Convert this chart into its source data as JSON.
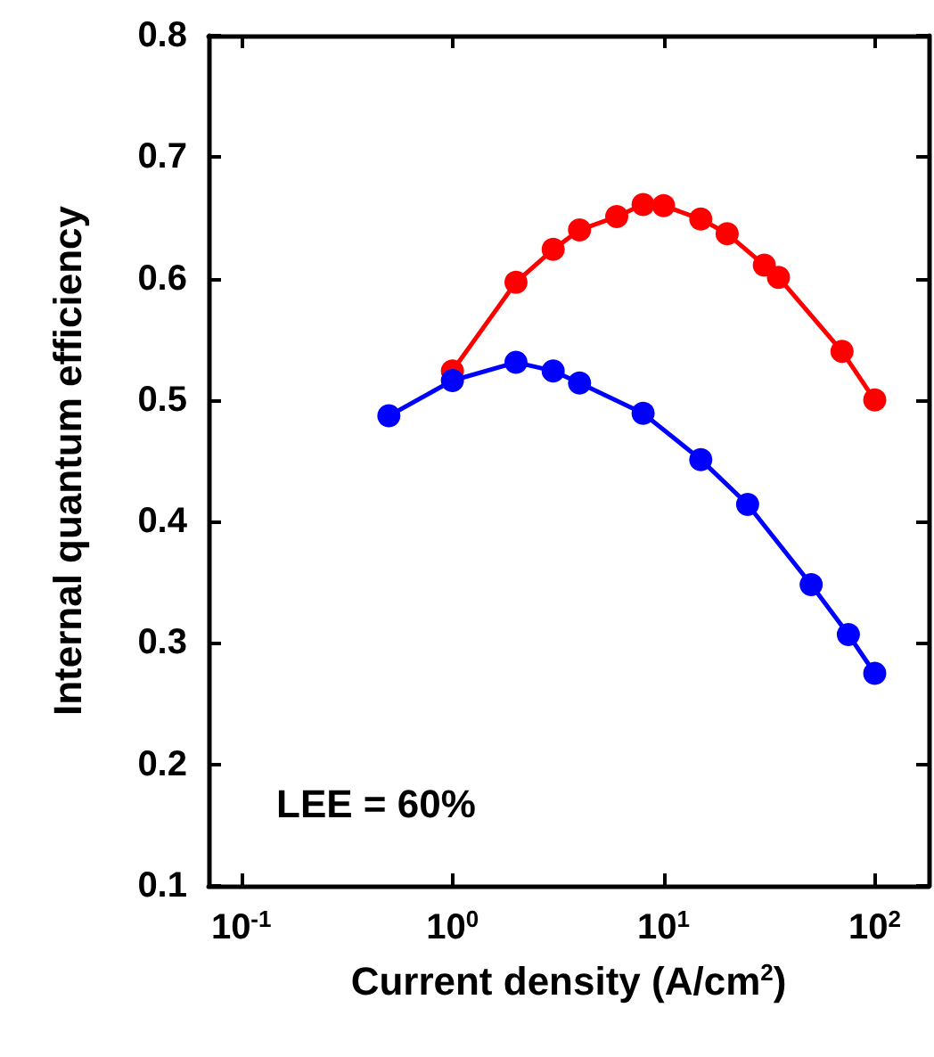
{
  "chart_data": {
    "type": "line",
    "xlabel": "Current density (A/cm$^{2}$)",
    "ylabel": "Internal quantum efficiency",
    "annotations": [
      "LEE = 60%"
    ],
    "log": "x",
    "grid": false,
    "marker": "circle",
    "line_style": "solid",
    "xlim": [
      0.07,
      180
    ],
    "xticks": [
      {
        "value": 0.1,
        "label": "10$^{-1}$"
      },
      {
        "value": 1,
        "label": "10$^{0}$"
      },
      {
        "value": 10,
        "label": "10$^{1}$"
      },
      {
        "value": 100,
        "label": "10$^{2}$"
      }
    ],
    "ylim": [
      0.1,
      0.8
    ],
    "yticks": [
      0.1,
      0.2,
      0.3,
      0.4,
      0.5,
      0.6,
      0.7,
      0.8
    ],
    "series": [
      {
        "color": "#ff0000",
        "x": [
          1,
          2,
          3,
          4,
          6,
          8,
          10,
          15,
          20,
          30,
          35,
          70,
          100
        ],
        "values": [
          0.524,
          0.597,
          0.624,
          0.64,
          0.651,
          0.661,
          0.66,
          0.649,
          0.637,
          0.611,
          0.601,
          0.54,
          0.5
        ]
      },
      {
        "color": "#0000ff",
        "x": [
          0.5,
          1,
          2,
          3,
          4,
          8,
          15,
          25,
          50,
          75,
          100
        ],
        "values": [
          0.487,
          0.516,
          0.531,
          0.524,
          0.514,
          0.489,
          0.451,
          0.414,
          0.348,
          0.307,
          0.275
        ]
      }
    ]
  }
}
